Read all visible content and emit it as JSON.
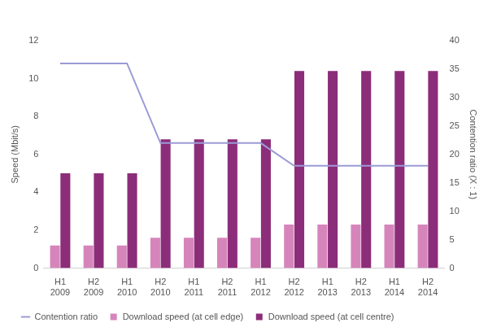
{
  "chart_data": {
    "type": "bar",
    "categories": [
      [
        "H1",
        "2009"
      ],
      [
        "H2",
        "2009"
      ],
      [
        "H1",
        "2010"
      ],
      [
        "H2",
        "2010"
      ],
      [
        "H1",
        "2011"
      ],
      [
        "H2",
        "2011"
      ],
      [
        "H1",
        "2012"
      ],
      [
        "H2",
        "2012"
      ],
      [
        "H1",
        "2013"
      ],
      [
        "H2",
        "2013"
      ],
      [
        "H1",
        "2014"
      ],
      [
        "H2",
        "2014"
      ]
    ],
    "series": [
      {
        "name": "Download speed (at cell edge)",
        "type": "bar",
        "color": "#d685bb",
        "values": [
          1.2,
          1.2,
          1.2,
          1.6,
          1.6,
          1.6,
          1.6,
          2.3,
          2.3,
          2.3,
          2.3,
          2.3
        ]
      },
      {
        "name": "Download speed (at cell centre)",
        "type": "bar",
        "color": "#8c2d7a",
        "values": [
          5,
          5,
          5,
          6.8,
          6.8,
          6.8,
          6.8,
          10.4,
          10.4,
          10.4,
          10.4,
          10.4
        ]
      },
      {
        "name": "Contention ratio",
        "type": "line",
        "color": "#9b9ad6",
        "axis": "y2",
        "marker": "none",
        "values": [
          36,
          36,
          36,
          22,
          22,
          22,
          22,
          18,
          18,
          18,
          18,
          18
        ]
      }
    ],
    "y_label": "Speed (Mbit/s)",
    "y2_label": "Contention ratio (X : 1)",
    "ylim": [
      0,
      12
    ],
    "yticks": [
      0,
      2,
      4,
      6,
      8,
      10,
      12
    ],
    "y2lim": [
      0,
      40
    ],
    "y2ticks": [
      0,
      5,
      10,
      15,
      20,
      25,
      30,
      35,
      40
    ],
    "grid": false,
    "legend": "bottom"
  }
}
